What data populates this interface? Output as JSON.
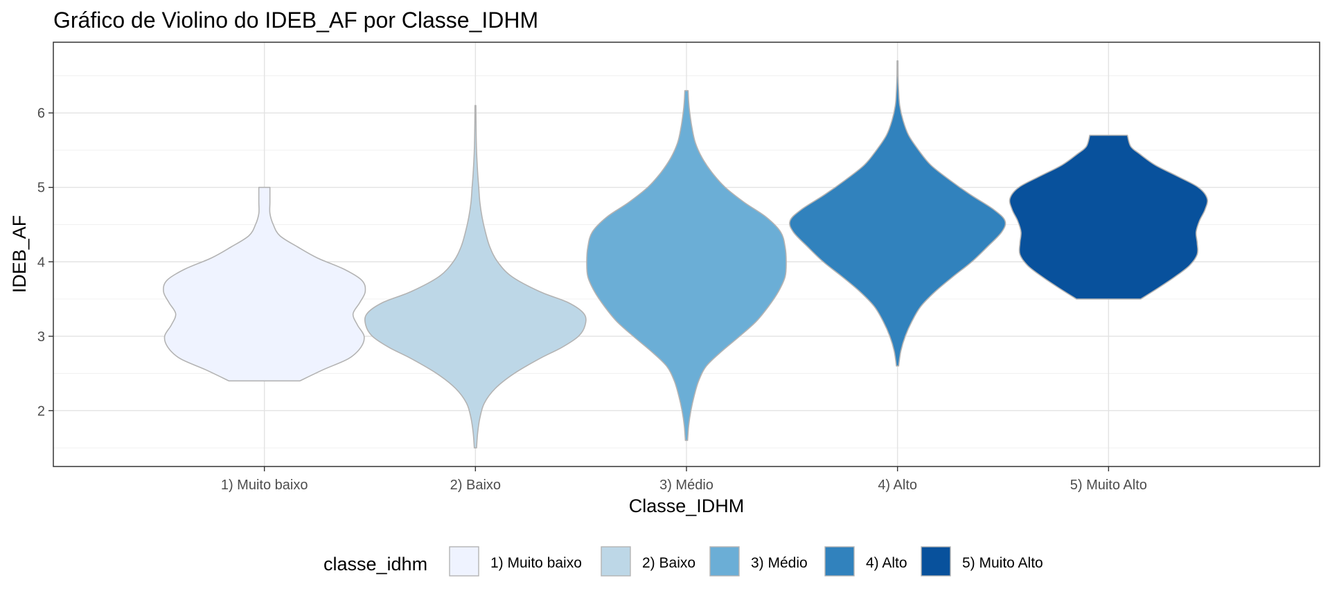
{
  "chart_data": {
    "type": "violin",
    "title": "Gráfico de Violino do IDEB_AF por Classe_IDHM",
    "xlabel": "Classe_IDHM",
    "ylabel": "IDEB_AF",
    "ylim": [
      1.25,
      6.95
    ],
    "y_ticks": [
      2,
      3,
      4,
      5,
      6
    ],
    "y_tick_labels": [
      "2",
      "3",
      "4",
      "5",
      "6"
    ],
    "grid": true,
    "legend": {
      "title": "classe_idhm",
      "placement": "bottom"
    },
    "categories": [
      "1) Muito baixo",
      "2) Baixo",
      "3) Médio",
      "4) Alto",
      "5) Muito Alto"
    ],
    "series": [
      {
        "name": "1) Muito baixo",
        "color": "#eff3ff",
        "min": 2.4,
        "max": 5.0,
        "density": [
          [
            2.4,
            0.32
          ],
          [
            2.55,
            0.53
          ],
          [
            2.7,
            0.76
          ],
          [
            2.85,
            0.87
          ],
          [
            3.0,
            0.9
          ],
          [
            3.15,
            0.84
          ],
          [
            3.3,
            0.8
          ],
          [
            3.45,
            0.86
          ],
          [
            3.6,
            0.91
          ],
          [
            3.75,
            0.88
          ],
          [
            3.9,
            0.72
          ],
          [
            4.05,
            0.48
          ],
          [
            4.2,
            0.3
          ],
          [
            4.35,
            0.14
          ],
          [
            4.5,
            0.08
          ],
          [
            4.65,
            0.05
          ],
          [
            4.8,
            0.05
          ],
          [
            5.0,
            0.05
          ]
        ]
      },
      {
        "name": "2) Baixo",
        "color": "#bdd7e7",
        "min": 1.5,
        "max": 6.1,
        "density": [
          [
            1.5,
            0.01
          ],
          [
            1.7,
            0.02
          ],
          [
            1.9,
            0.04
          ],
          [
            2.1,
            0.08
          ],
          [
            2.3,
            0.18
          ],
          [
            2.5,
            0.35
          ],
          [
            2.7,
            0.58
          ],
          [
            2.85,
            0.78
          ],
          [
            3.0,
            0.93
          ],
          [
            3.15,
            0.99
          ],
          [
            3.3,
            0.98
          ],
          [
            3.45,
            0.84
          ],
          [
            3.6,
            0.58
          ],
          [
            3.8,
            0.33
          ],
          [
            4.0,
            0.2
          ],
          [
            4.2,
            0.13
          ],
          [
            4.4,
            0.09
          ],
          [
            4.6,
            0.06
          ],
          [
            4.8,
            0.04
          ],
          [
            5.0,
            0.03
          ],
          [
            5.2,
            0.02
          ],
          [
            5.5,
            0.01
          ],
          [
            5.8,
            0.006
          ],
          [
            6.1,
            0.003
          ]
        ]
      },
      {
        "name": "3) Médio",
        "color": "#6baed6",
        "min": 1.6,
        "max": 6.3,
        "density": [
          [
            1.6,
            0.01
          ],
          [
            1.8,
            0.02
          ],
          [
            2.0,
            0.04
          ],
          [
            2.2,
            0.07
          ],
          [
            2.4,
            0.11
          ],
          [
            2.6,
            0.18
          ],
          [
            2.8,
            0.32
          ],
          [
            3.0,
            0.48
          ],
          [
            3.2,
            0.63
          ],
          [
            3.4,
            0.74
          ],
          [
            3.6,
            0.83
          ],
          [
            3.8,
            0.89
          ],
          [
            4.0,
            0.9
          ],
          [
            4.2,
            0.89
          ],
          [
            4.4,
            0.85
          ],
          [
            4.6,
            0.72
          ],
          [
            4.8,
            0.52
          ],
          [
            5.0,
            0.35
          ],
          [
            5.2,
            0.23
          ],
          [
            5.4,
            0.14
          ],
          [
            5.6,
            0.08
          ],
          [
            5.8,
            0.05
          ],
          [
            6.0,
            0.03
          ],
          [
            6.15,
            0.02
          ],
          [
            6.3,
            0.015
          ]
        ]
      },
      {
        "name": "4) Alto",
        "color": "#3182bd",
        "min": 2.6,
        "max": 6.7,
        "density": [
          [
            2.6,
            0.01
          ],
          [
            2.8,
            0.03
          ],
          [
            3.0,
            0.07
          ],
          [
            3.2,
            0.13
          ],
          [
            3.4,
            0.21
          ],
          [
            3.6,
            0.34
          ],
          [
            3.8,
            0.5
          ],
          [
            4.0,
            0.67
          ],
          [
            4.2,
            0.81
          ],
          [
            4.4,
            0.94
          ],
          [
            4.55,
            0.97
          ],
          [
            4.7,
            0.87
          ],
          [
            4.9,
            0.66
          ],
          [
            5.1,
            0.47
          ],
          [
            5.3,
            0.3
          ],
          [
            5.5,
            0.19
          ],
          [
            5.7,
            0.1
          ],
          [
            5.9,
            0.05
          ],
          [
            6.1,
            0.02
          ],
          [
            6.3,
            0.01
          ],
          [
            6.5,
            0.005
          ],
          [
            6.7,
            0.003
          ]
        ]
      },
      {
        "name": "5) Muito Alto",
        "color": "#08519c",
        "min": 3.5,
        "max": 5.7,
        "density": [
          [
            3.5,
            0.29
          ],
          [
            3.65,
            0.45
          ],
          [
            3.8,
            0.6
          ],
          [
            3.95,
            0.73
          ],
          [
            4.1,
            0.8
          ],
          [
            4.25,
            0.8
          ],
          [
            4.4,
            0.79
          ],
          [
            4.55,
            0.82
          ],
          [
            4.7,
            0.87
          ],
          [
            4.85,
            0.89
          ],
          [
            5.0,
            0.81
          ],
          [
            5.15,
            0.62
          ],
          [
            5.3,
            0.42
          ],
          [
            5.45,
            0.28
          ],
          [
            5.55,
            0.2
          ],
          [
            5.7,
            0.17
          ]
        ]
      }
    ]
  }
}
